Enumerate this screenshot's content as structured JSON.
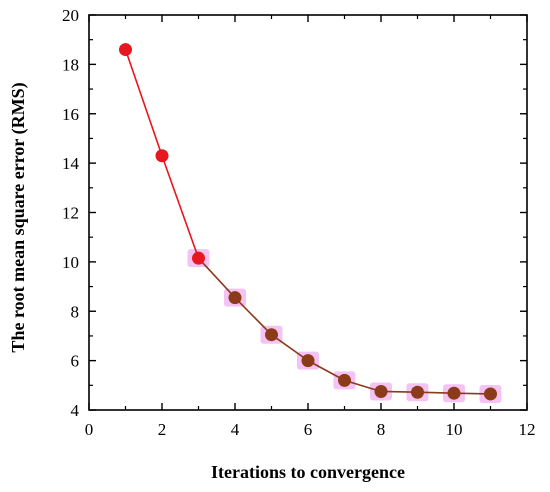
{
  "chart_data": {
    "type": "line",
    "title": "",
    "xlabel": "Iterations to convergence",
    "ylabel": "The root mean square error (RMS)",
    "xlim": [
      0,
      12
    ],
    "ylim": [
      4,
      20
    ],
    "x_ticks": [
      "0",
      "2",
      "4",
      "6",
      "8",
      "10",
      "12"
    ],
    "y_ticks": [
      "4",
      "6",
      "8",
      "10",
      "12",
      "14",
      "16",
      "18",
      "20"
    ],
    "grid": false,
    "legend": "none",
    "series": [
      {
        "x": [
          1,
          2,
          3,
          4,
          5,
          6,
          7,
          8,
          9,
          10,
          11
        ],
        "values": [
          18.6,
          14.3,
          10.15,
          8.55,
          7.05,
          6.0,
          5.2,
          4.75,
          4.72,
          4.68,
          4.65
        ],
        "colors": {
          "early_segment": "#e8161e",
          "late_segment": "#8b3a1a",
          "highlight": "#f3b4f0"
        }
      }
    ]
  }
}
